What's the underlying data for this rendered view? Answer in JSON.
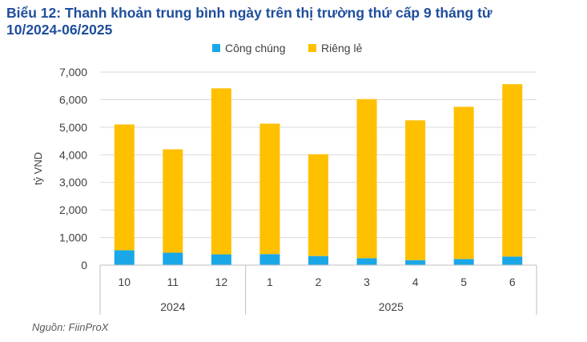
{
  "chart_data": {
    "type": "bar",
    "stacked": true,
    "title_line1": "Biểu 12: Thanh khoản trung bình ngày trên thị trường thứ cấp 9 tháng từ",
    "title_line2": "10/2024-06/2025",
    "ylabel": "tỷ VND",
    "ylim": [
      0,
      7000
    ],
    "yticks": [
      "0",
      "1,000",
      "2,000",
      "3,000",
      "4,000",
      "5,000",
      "6,000",
      "7,000"
    ],
    "grid": true,
    "legend_position": "top-center",
    "categories": [
      "10",
      "11",
      "12",
      "1",
      "2",
      "3",
      "4",
      "5",
      "6"
    ],
    "groups": [
      {
        "label": "2024",
        "count": 3
      },
      {
        "label": "2025",
        "count": 6
      }
    ],
    "series": [
      {
        "name": "Công chúng",
        "color": "#1aa7e8",
        "values": [
          540,
          450,
          390,
          400,
          330,
          250,
          180,
          220,
          310
        ]
      },
      {
        "name": "Riêng lẻ",
        "color": "#ffc000",
        "values": [
          4560,
          3750,
          6020,
          4730,
          3690,
          5770,
          5070,
          5520,
          6250
        ]
      }
    ],
    "source": "Nguồn: FiinProX"
  }
}
